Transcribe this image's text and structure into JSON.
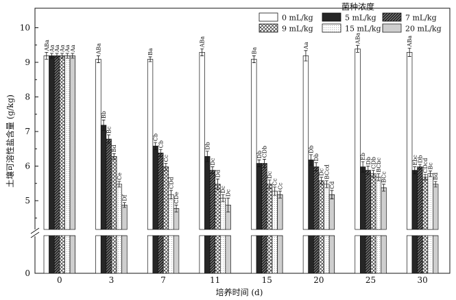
{
  "chart_data": {
    "type": "bar",
    "xlabel": "培养时间 (d)",
    "ylabel": "土壤可溶性盐含量 (g/kg)",
    "categories": [
      "0",
      "3",
      "7",
      "11",
      "15",
      "20",
      "25",
      "30"
    ],
    "y_ticks_upper": [
      "5",
      "6",
      "7",
      "8",
      "9",
      "10"
    ],
    "y_tick_lower": "0",
    "ylim_upper": [
      4.35,
      10.25
    ],
    "axis_break": true,
    "legend_title": "菌种浓度",
    "legend_placement": "top-right",
    "series": [
      {
        "name": "0 mL/kg",
        "pattern": "white",
        "values": [
          8.9,
          8.8,
          8.8,
          9.0,
          8.8,
          8.9,
          9.1,
          9.0
        ],
        "errors": [
          0.1,
          0.1,
          0.07,
          0.1,
          0.1,
          0.15,
          0.1,
          0.12
        ],
        "labels": [
          "ABa",
          "ABa",
          "Ba",
          "ABa",
          "Ba",
          "Aa",
          "ABa",
          "ABa"
        ]
      },
      {
        "name": "5 mL/kg",
        "pattern": "black",
        "values": [
          8.9,
          6.9,
          6.3,
          6.0,
          5.8,
          5.9,
          5.7,
          5.6
        ],
        "errors": [
          0.07,
          0.15,
          0.1,
          0.15,
          0.1,
          0.15,
          0.15,
          0.1
        ],
        "labels": [
          "Aa",
          "Bb",
          "Cb",
          "Db",
          "Db",
          "Db",
          "Eb",
          "Ebc"
        ]
      },
      {
        "name": "7 mL/kg",
        "pattern": "dark-hatch",
        "values": [
          8.9,
          6.5,
          6.1,
          5.6,
          5.8,
          5.7,
          5.6,
          5.7
        ],
        "errors": [
          0.07,
          0.12,
          0.1,
          0.1,
          0.12,
          0.12,
          0.12,
          0.07
        ],
        "labels": [
          "Aa",
          "Bc",
          "Cb",
          "Dc",
          "CDb",
          "Db",
          "Db",
          "Db"
        ]
      },
      {
        "name": "9 mL/kg",
        "pattern": "crosshatch",
        "values": [
          8.9,
          6.0,
          5.7,
          5.2,
          5.2,
          5.3,
          5.5,
          5.4
        ],
        "errors": [
          0.07,
          0.08,
          0.1,
          0.15,
          0.12,
          0.1,
          0.1,
          0.08
        ],
        "labels": [
          "Aa",
          "Bd",
          "Cc",
          "Dd",
          "Dc",
          "Dc",
          "CDb",
          "CDcd"
        ]
      },
      {
        "name": "15 mL/kg",
        "pattern": "fine-dots",
        "values": [
          8.9,
          5.2,
          4.9,
          4.8,
          5.0,
          5.2,
          5.4,
          5.5
        ],
        "errors": [
          0.07,
          0.08,
          0.12,
          0.1,
          0.12,
          0.1,
          0.1,
          0.08
        ],
        "labels": [
          "Aa",
          "Ce",
          "CDd",
          "Dc",
          "Cc",
          "BCcd",
          "BCbc",
          "Bc"
        ]
      },
      {
        "name": "20 mL/kg",
        "pattern": "dense-dots",
        "values": [
          8.9,
          4.6,
          4.5,
          4.6,
          4.9,
          4.9,
          5.1,
          5.2
        ],
        "errors": [
          0.07,
          0.07,
          0.1,
          0.2,
          0.1,
          0.12,
          0.1,
          0.08
        ],
        "labels": [
          "Aa",
          "Df",
          "CDe",
          "Dc",
          "Cc",
          "Cd",
          "BCc",
          "Bd"
        ]
      }
    ]
  }
}
